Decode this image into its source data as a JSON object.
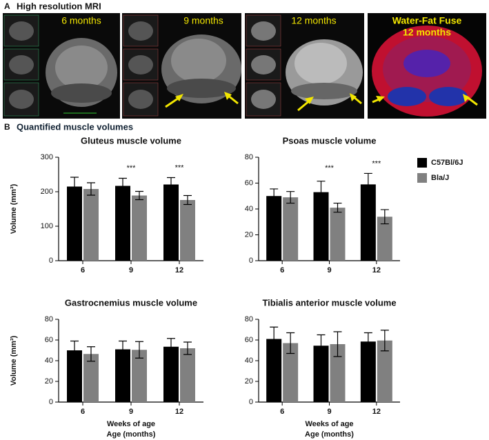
{
  "panel_a": {
    "label": "A",
    "title": "High resolution MRI",
    "images": [
      {
        "caption": "6 months"
      },
      {
        "caption": "9 months"
      },
      {
        "caption": "12 months"
      },
      {
        "caption": "Water-Fat Fuse",
        "subcaption": "12 months"
      }
    ]
  },
  "panel_b": {
    "label": "B",
    "title": "Quantified muscle volumes"
  },
  "legend": [
    {
      "name": "C57Bl/6J",
      "color": "#000000"
    },
    {
      "name": "Bla/J",
      "color": "#808080"
    }
  ],
  "chart_data": [
    {
      "type": "bar",
      "title": "Gluteus muscle volume",
      "ylabel": "Volume (mm³)",
      "categories": [
        "6",
        "9",
        "12"
      ],
      "ylim": [
        0,
        300
      ],
      "yticks": [
        0,
        100,
        200,
        300
      ],
      "series": [
        {
          "values": [
            215,
            217,
            221
          ],
          "errors": [
            27,
            22,
            20
          ]
        },
        {
          "values": [
            208,
            189,
            176
          ],
          "errors": [
            18,
            12,
            13
          ]
        }
      ],
      "significance": [
        null,
        "***",
        "***"
      ]
    },
    {
      "type": "bar",
      "title": "Psoas muscle volume",
      "categories": [
        "6",
        "9",
        "12"
      ],
      "ylim": [
        0,
        80
      ],
      "yticks": [
        0,
        20,
        40,
        60,
        80
      ],
      "series": [
        {
          "values": [
            50,
            53,
            59
          ],
          "errors": [
            5.5,
            8.5,
            8.5
          ]
        },
        {
          "values": [
            49,
            41,
            34
          ],
          "errors": [
            4.5,
            3.5,
            5.5
          ]
        }
      ],
      "significance": [
        null,
        "***",
        "***"
      ]
    },
    {
      "type": "bar",
      "title": "Gastrocnemius muscle volume",
      "ylabel": "Volume (mm³)",
      "xlabel": "Weeks of age",
      "xlabel2": "Age (months)",
      "categories": [
        "6",
        "9",
        "12"
      ],
      "ylim": [
        0,
        80
      ],
      "yticks": [
        0,
        20,
        40,
        60,
        80
      ],
      "series": [
        {
          "values": [
            50,
            51,
            53.5
          ],
          "errors": [
            9,
            8,
            8
          ]
        },
        {
          "values": [
            46.5,
            50.5,
            52
          ],
          "errors": [
            7,
            8,
            6
          ]
        }
      ]
    },
    {
      "type": "bar",
      "title": "Tibialis anterior muscle volume",
      "xlabel": "Weeks of age",
      "xlabel2": "Age (months)",
      "categories": [
        "6",
        "9",
        "12"
      ],
      "ylim": [
        0,
        80
      ],
      "yticks": [
        0,
        20,
        40,
        60,
        80
      ],
      "series": [
        {
          "values": [
            61,
            54.5,
            58.5
          ],
          "errors": [
            11.5,
            10.5,
            8.5
          ]
        },
        {
          "values": [
            57,
            56,
            59.5
          ],
          "errors": [
            10,
            12,
            10
          ]
        }
      ]
    }
  ]
}
